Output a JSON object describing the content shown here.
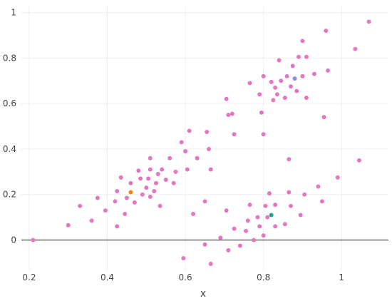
{
  "chart_data": {
    "type": "scatter",
    "title": "",
    "xlabel": "x",
    "ylabel": "",
    "xlim": [
      0.18,
      1.12
    ],
    "ylim": [
      -0.13,
      1.03
    ],
    "xticks": [
      0.2,
      0.4,
      0.6,
      0.8,
      1.0
    ],
    "xtick_labels": [
      "0.2",
      "0.4",
      "0.6",
      "0.8",
      "1"
    ],
    "yticks": [
      0,
      0.2,
      0.4,
      0.6,
      0.8,
      1.0
    ],
    "ytick_labels": [
      "0",
      "0.2",
      "0.4",
      "0.6",
      "0.8",
      "1"
    ],
    "grid": true,
    "zero_line": true,
    "legend": "none",
    "colors": {
      "main": "#e377c2",
      "orange": "#ff7f0e",
      "blue": "#8c8fd8",
      "green": "#2ca089",
      "grid": "#eeeeee",
      "zeroline": "#444444"
    },
    "series": [
      {
        "color": "#e377c2",
        "points": [
          [
            0.21,
            0.0
          ],
          [
            0.3,
            0.065
          ],
          [
            0.33,
            0.15
          ],
          [
            0.36,
            0.085
          ],
          [
            0.375,
            0.185
          ],
          [
            0.395,
            0.13
          ],
          [
            0.42,
            0.17
          ],
          [
            0.425,
            0.215
          ],
          [
            0.425,
            0.06
          ],
          [
            0.435,
            0.275
          ],
          [
            0.445,
            0.115
          ],
          [
            0.45,
            0.185
          ],
          [
            0.46,
            0.25
          ],
          [
            0.47,
            0.165
          ],
          [
            0.48,
            0.305
          ],
          [
            0.485,
            0.27
          ],
          [
            0.49,
            0.2
          ],
          [
            0.5,
            0.23
          ],
          [
            0.505,
            0.27
          ],
          [
            0.51,
            0.36
          ],
          [
            0.51,
            0.31
          ],
          [
            0.51,
            0.19
          ],
          [
            0.52,
            0.215
          ],
          [
            0.525,
            0.25
          ],
          [
            0.53,
            0.29
          ],
          [
            0.535,
            0.15
          ],
          [
            0.54,
            0.31
          ],
          [
            0.55,
            0.265
          ],
          [
            0.56,
            0.36
          ],
          [
            0.57,
            0.25
          ],
          [
            0.575,
            0.3
          ],
          [
            0.59,
            0.43
          ],
          [
            0.6,
            0.39
          ],
          [
            0.605,
            0.31
          ],
          [
            0.61,
            0.48
          ],
          [
            0.62,
            0.115
          ],
          [
            0.63,
            0.36
          ],
          [
            0.65,
            0.17
          ],
          [
            0.655,
            0.475
          ],
          [
            0.66,
            0.4
          ],
          [
            0.665,
            0.31
          ],
          [
            0.595,
            -0.08
          ],
          [
            0.65,
            -0.02
          ],
          [
            0.665,
            -0.105
          ],
          [
            0.69,
            0.01
          ],
          [
            0.705,
            0.62
          ],
          [
            0.705,
            0.13
          ],
          [
            0.71,
            0.55
          ],
          [
            0.71,
            -0.045
          ],
          [
            0.72,
            0.555
          ],
          [
            0.725,
            0.465
          ],
          [
            0.725,
            0.05
          ],
          [
            0.74,
            -0.025
          ],
          [
            0.755,
            0.04
          ],
          [
            0.76,
            0.085
          ],
          [
            0.765,
            0.155
          ],
          [
            0.765,
            0.69
          ],
          [
            0.775,
            0.0
          ],
          [
            0.785,
            0.1
          ],
          [
            0.79,
            0.06
          ],
          [
            0.79,
            0.64
          ],
          [
            0.795,
            0.56
          ],
          [
            0.8,
            0.72
          ],
          [
            0.8,
            0.465
          ],
          [
            0.8,
            0.02
          ],
          [
            0.805,
            0.15
          ],
          [
            0.81,
            0.1
          ],
          [
            0.815,
            0.205
          ],
          [
            0.82,
            0.695
          ],
          [
            0.825,
            0.615
          ],
          [
            0.83,
            0.67
          ],
          [
            0.83,
            0.155
          ],
          [
            0.83,
            0.06
          ],
          [
            0.835,
            0.64
          ],
          [
            0.84,
            0.79
          ],
          [
            0.845,
            0.7
          ],
          [
            0.855,
            0.625
          ],
          [
            0.855,
            0.07
          ],
          [
            0.86,
            0.72
          ],
          [
            0.865,
            0.355
          ],
          [
            0.865,
            0.21
          ],
          [
            0.87,
            0.15
          ],
          [
            0.87,
            0.675
          ],
          [
            0.875,
            0.765
          ],
          [
            0.885,
            0.655
          ],
          [
            0.89,
            0.805
          ],
          [
            0.895,
            0.11
          ],
          [
            0.9,
            0.875
          ],
          [
            0.9,
            0.72
          ],
          [
            0.905,
            0.2
          ],
          [
            0.91,
            0.805
          ],
          [
            0.91,
            0.625
          ],
          [
            0.93,
            0.73
          ],
          [
            0.94,
            0.235
          ],
          [
            0.95,
            0.17
          ],
          [
            0.955,
            0.54
          ],
          [
            0.96,
            0.92
          ],
          [
            0.965,
            0.745
          ],
          [
            0.99,
            0.275
          ],
          [
            1.035,
            0.84
          ],
          [
            1.045,
            0.35
          ],
          [
            1.07,
            0.96
          ]
        ]
      },
      {
        "color": "#ff7f0e",
        "points": [
          [
            0.46,
            0.21
          ]
        ]
      },
      {
        "color": "#8c8fd8",
        "points": [
          [
            0.88,
            0.71
          ]
        ]
      },
      {
        "color": "#2ca089",
        "points": [
          [
            0.82,
            0.11
          ]
        ]
      }
    ]
  }
}
